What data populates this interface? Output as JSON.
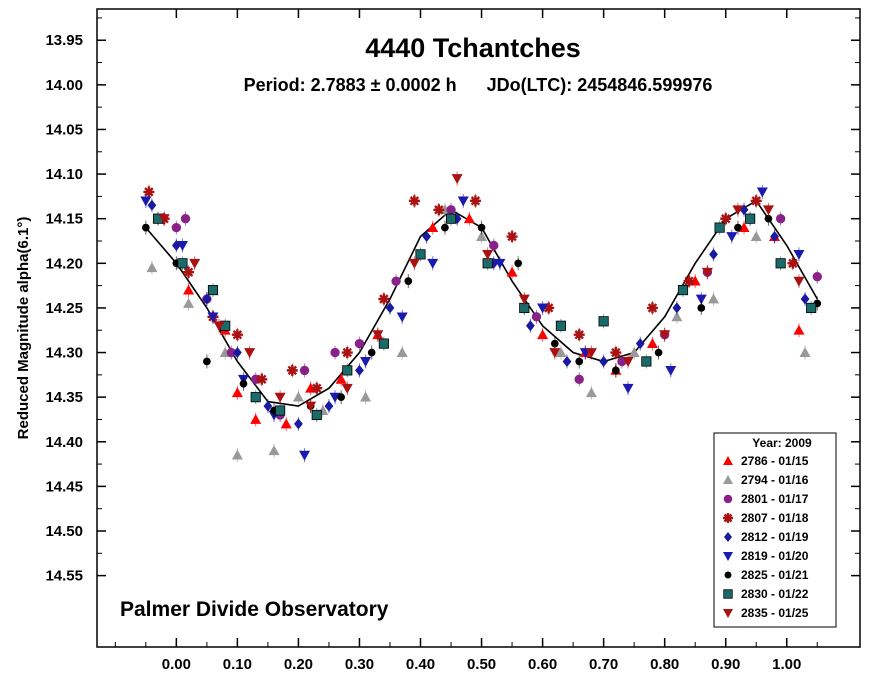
{
  "chart_data": {
    "type": "scatter",
    "title": "4440 Tchantches",
    "subtitle": "Period: 2.7883 ± 0.0002 h      JDo(LTC): 2454846.599976",
    "xlabel": "",
    "ylabel": "Reduced Magnitude alpha(6.1°)",
    "xlim": [
      -0.13,
      1.12
    ],
    "ylim": [
      13.915,
      14.63
    ],
    "y_inverted": true,
    "x_ticks": [
      "0.00",
      "0.10",
      "0.20",
      "0.30",
      "0.40",
      "0.50",
      "0.60",
      "0.70",
      "0.80",
      "0.90",
      "1.00"
    ],
    "y_ticks": [
      "13.95",
      "14.00",
      "14.05",
      "14.10",
      "14.15",
      "14.20",
      "14.25",
      "14.30",
      "14.35",
      "14.40",
      "14.45",
      "14.50",
      "14.55"
    ],
    "annotation": "Palmer Divide Observatory",
    "legend": {
      "title": "Year: 2009",
      "placement": "bottom-right"
    },
    "fit_curve": {
      "description": "Fourier fit",
      "color": "#000000",
      "x": [
        -0.05,
        0.0,
        0.05,
        0.1,
        0.15,
        0.2,
        0.25,
        0.3,
        0.35,
        0.4,
        0.45,
        0.5,
        0.55,
        0.6,
        0.65,
        0.7,
        0.75,
        0.8,
        0.85,
        0.9,
        0.95,
        1.0,
        1.05
      ],
      "y": [
        14.16,
        14.2,
        14.25,
        14.31,
        14.355,
        14.36,
        14.34,
        14.3,
        14.24,
        14.17,
        14.14,
        14.16,
        14.22,
        14.27,
        14.3,
        14.31,
        14.3,
        14.26,
        14.2,
        14.15,
        14.13,
        14.18,
        14.24
      ]
    },
    "series": [
      {
        "name": "2786 - 01/15",
        "color": "#ff0000",
        "marker": "triangle-up",
        "x": [
          -0.03,
          0.02,
          0.08,
          0.1,
          0.13,
          0.18,
          0.22,
          0.27,
          0.33,
          0.42,
          0.48,
          0.55,
          0.6,
          0.67,
          0.72,
          0.78,
          0.85,
          0.93,
          0.98,
          1.02
        ],
        "y": [
          14.15,
          14.23,
          14.275,
          14.345,
          14.375,
          14.38,
          14.34,
          14.33,
          14.28,
          14.16,
          14.15,
          14.21,
          14.28,
          14.3,
          14.32,
          14.29,
          14.22,
          14.16,
          14.17,
          14.275
        ]
      },
      {
        "name": "2794 - 01/16",
        "color": "#999999",
        "marker": "triangle-up",
        "x": [
          -0.04,
          0.02,
          0.08,
          0.1,
          0.16,
          0.2,
          0.24,
          0.31,
          0.37,
          0.44,
          0.5,
          0.57,
          0.63,
          0.68,
          0.75,
          0.82,
          0.88,
          0.95,
          1.03
        ],
        "y": [
          14.205,
          14.245,
          14.3,
          14.415,
          14.41,
          14.35,
          14.365,
          14.35,
          14.3,
          14.14,
          14.17,
          14.25,
          14.3,
          14.345,
          14.3,
          14.26,
          14.24,
          14.17,
          14.3
        ]
      },
      {
        "name": "2801 - 01/17",
        "color": "#882288",
        "marker": "circle",
        "x": [
          0.0,
          0.015,
          0.05,
          0.09,
          0.13,
          0.17,
          0.21,
          0.26,
          0.3,
          0.36,
          0.45,
          0.52,
          0.59,
          0.66,
          0.73,
          0.8,
          0.87,
          0.94,
          0.99,
          1.05
        ],
        "y": [
          14.16,
          14.15,
          14.24,
          14.3,
          14.33,
          14.37,
          14.32,
          14.3,
          14.29,
          14.22,
          14.14,
          14.18,
          14.26,
          14.33,
          14.31,
          14.28,
          14.21,
          14.15,
          14.15,
          14.215
        ]
      },
      {
        "name": "2807 - 01/18",
        "color": "#aa1111",
        "marker": "star",
        "x": [
          -0.045,
          -0.02,
          0.02,
          0.06,
          0.1,
          0.14,
          0.19,
          0.23,
          0.28,
          0.34,
          0.39,
          0.43,
          0.49,
          0.55,
          0.61,
          0.66,
          0.72,
          0.78,
          0.84,
          0.9,
          0.95,
          1.01
        ],
        "y": [
          14.12,
          14.15,
          14.21,
          14.26,
          14.28,
          14.33,
          14.32,
          14.34,
          14.3,
          14.24,
          14.13,
          14.14,
          14.13,
          14.17,
          14.25,
          14.28,
          14.3,
          14.25,
          14.22,
          14.15,
          14.13,
          14.2
        ]
      },
      {
        "name": "2812 - 01/19",
        "color": "#1a1aa0",
        "marker": "diamond",
        "x": [
          -0.04,
          0.0,
          0.05,
          0.1,
          0.15,
          0.2,
          0.25,
          0.3,
          0.35,
          0.41,
          0.46,
          0.52,
          0.58,
          0.64,
          0.7,
          0.76,
          0.82,
          0.88,
          0.93,
          0.98,
          1.03
        ],
        "y": [
          14.135,
          14.18,
          14.24,
          14.3,
          14.36,
          14.38,
          14.36,
          14.32,
          14.25,
          14.17,
          14.15,
          14.2,
          14.27,
          14.31,
          14.31,
          14.29,
          14.25,
          14.19,
          14.14,
          14.17,
          14.24
        ]
      },
      {
        "name": "2819 - 01/20",
        "color": "#1a1ab0",
        "marker": "triangle-down",
        "x": [
          -0.05,
          0.01,
          0.06,
          0.11,
          0.16,
          0.21,
          0.26,
          0.31,
          0.37,
          0.42,
          0.47,
          0.53,
          0.6,
          0.67,
          0.74,
          0.81,
          0.86,
          0.91,
          0.96,
          1.02
        ],
        "y": [
          14.13,
          14.18,
          14.26,
          14.33,
          14.37,
          14.415,
          14.35,
          14.31,
          14.26,
          14.2,
          14.13,
          14.2,
          14.25,
          14.3,
          14.34,
          14.32,
          14.24,
          14.17,
          14.12,
          14.19
        ]
      },
      {
        "name": "2825 - 01/21",
        "color": "#000000",
        "marker": "circle-small",
        "x": [
          -0.05,
          0.0,
          0.05,
          0.11,
          0.16,
          0.22,
          0.27,
          0.32,
          0.38,
          0.44,
          0.5,
          0.56,
          0.62,
          0.66,
          0.72,
          0.79,
          0.86,
          0.92,
          0.97,
          1.05
        ],
        "y": [
          14.16,
          14.2,
          14.31,
          14.335,
          14.365,
          14.36,
          14.35,
          14.3,
          14.22,
          14.16,
          14.16,
          14.2,
          14.29,
          14.31,
          14.32,
          14.3,
          14.25,
          14.16,
          14.15,
          14.245
        ]
      },
      {
        "name": "2830 - 01/22",
        "color": "#1a6a6a",
        "marker": "square",
        "x": [
          -0.03,
          0.01,
          0.06,
          0.08,
          0.13,
          0.17,
          0.23,
          0.28,
          0.34,
          0.4,
          0.45,
          0.51,
          0.57,
          0.63,
          0.7,
          0.77,
          0.83,
          0.89,
          0.94,
          0.99,
          1.04
        ],
        "y": [
          14.15,
          14.2,
          14.23,
          14.27,
          14.35,
          14.365,
          14.37,
          14.32,
          14.29,
          14.19,
          14.15,
          14.2,
          14.25,
          14.27,
          14.265,
          14.31,
          14.23,
          14.16,
          14.15,
          14.2,
          14.25
        ]
      },
      {
        "name": "2835 - 01/25",
        "color": "#aa1111",
        "marker": "triangle-down",
        "x": [
          -0.02,
          0.03,
          0.07,
          0.12,
          0.17,
          0.22,
          0.28,
          0.33,
          0.39,
          0.46,
          0.51,
          0.57,
          0.62,
          0.68,
          0.74,
          0.8,
          0.87,
          0.92,
          0.97,
          1.02
        ],
        "y": [
          14.15,
          14.2,
          14.27,
          14.3,
          14.35,
          14.36,
          14.34,
          14.28,
          14.2,
          14.105,
          14.19,
          14.24,
          14.3,
          14.3,
          14.31,
          14.28,
          14.21,
          14.14,
          14.14,
          14.22
        ]
      }
    ]
  }
}
